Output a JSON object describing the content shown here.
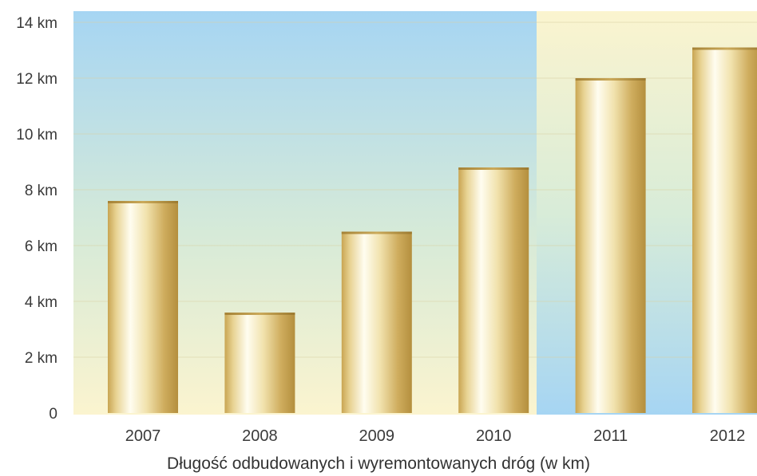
{
  "chart_data": {
    "type": "bar",
    "title": "",
    "xlabel": "Długość odbudowanych i wyremontowanych dróg (w km)",
    "ylabel": "",
    "categories": [
      "2007",
      "2008",
      "2009",
      "2010",
      "2011",
      "2012"
    ],
    "values": [
      7.6,
      3.6,
      6.5,
      8.8,
      12.0,
      13.1
    ],
    "ylim": [
      0,
      14
    ],
    "yticks": [
      {
        "value": 0,
        "label": "0"
      },
      {
        "value": 2,
        "label": "2 km"
      },
      {
        "value": 4,
        "label": "4 km"
      },
      {
        "value": 6,
        "label": "6 km"
      },
      {
        "value": 8,
        "label": "8 km"
      },
      {
        "value": 10,
        "label": "10 km"
      },
      {
        "value": 12,
        "label": "12 km"
      },
      {
        "value": 14,
        "label": "14 km"
      }
    ],
    "grid": true,
    "legend": "none",
    "colors": {
      "sky": "#a9d7f3",
      "cream": "#fbf4cf",
      "bar_light": "#fffbe6",
      "bar_dark": "#b89546",
      "gridline": "#d9cfa3"
    }
  }
}
